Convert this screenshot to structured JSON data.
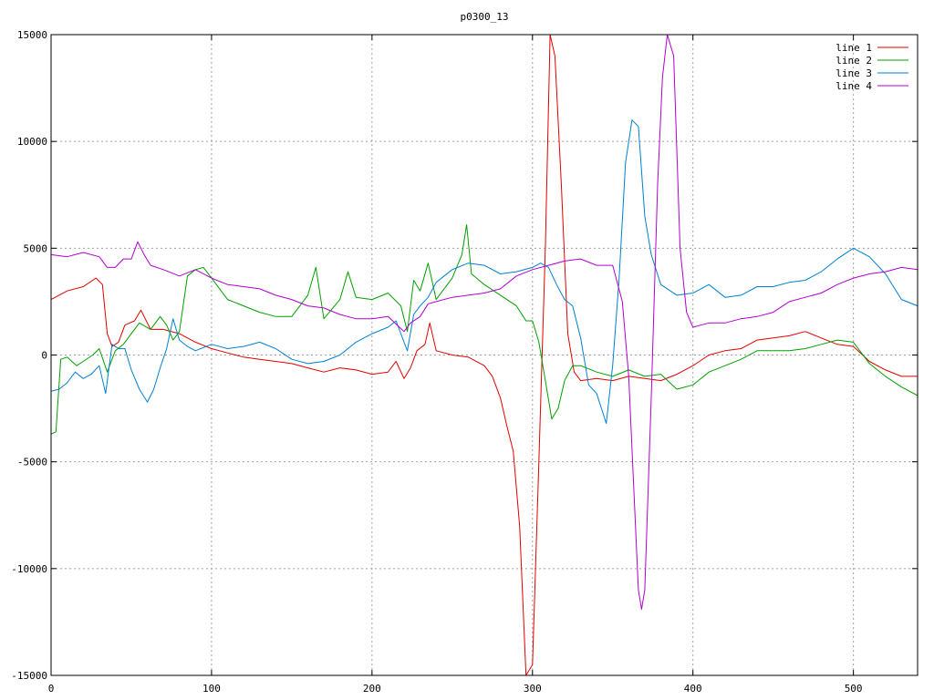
{
  "chart_data": {
    "type": "line",
    "title": "p0300_13",
    "xlabel": "",
    "ylabel": "",
    "xlim": [
      0,
      540
    ],
    "ylim": [
      -15000,
      15000
    ],
    "grid": true,
    "legend_position": "top-right",
    "x_ticks": [
      0,
      100,
      200,
      300,
      400,
      500
    ],
    "y_ticks": [
      -15000,
      -10000,
      -5000,
      0,
      5000,
      10000,
      15000
    ],
    "x_tick_labels": [
      "0",
      "100",
      "200",
      "300",
      "400",
      "500"
    ],
    "y_tick_labels": [
      "-15000",
      "-10000",
      "-5000",
      "0",
      "5000",
      "10000",
      "15000"
    ],
    "series": [
      {
        "name": "line 1",
        "color": "#e00000",
        "points": [
          [
            0,
            2600
          ],
          [
            10,
            3000
          ],
          [
            20,
            3200
          ],
          [
            28,
            3600
          ],
          [
            32,
            3300
          ],
          [
            35,
            1000
          ],
          [
            38,
            400
          ],
          [
            42,
            600
          ],
          [
            46,
            1400
          ],
          [
            52,
            1600
          ],
          [
            56,
            2100
          ],
          [
            62,
            1200
          ],
          [
            70,
            1200
          ],
          [
            80,
            1000
          ],
          [
            90,
            600
          ],
          [
            100,
            300
          ],
          [
            110,
            100
          ],
          [
            120,
            -100
          ],
          [
            130,
            -200
          ],
          [
            140,
            -300
          ],
          [
            150,
            -400
          ],
          [
            160,
            -600
          ],
          [
            170,
            -800
          ],
          [
            180,
            -600
          ],
          [
            190,
            -700
          ],
          [
            200,
            -900
          ],
          [
            210,
            -800
          ],
          [
            215,
            -300
          ],
          [
            220,
            -1100
          ],
          [
            224,
            -600
          ],
          [
            228,
            200
          ],
          [
            233,
            500
          ],
          [
            236,
            1500
          ],
          [
            240,
            200
          ],
          [
            250,
            0
          ],
          [
            260,
            -100
          ],
          [
            270,
            -500
          ],
          [
            275,
            -1000
          ],
          [
            280,
            -2000
          ],
          [
            284,
            -3300
          ],
          [
            288,
            -4500
          ],
          [
            292,
            -8000
          ],
          [
            296,
            -15000
          ],
          [
            300,
            -14500
          ],
          [
            304,
            -5000
          ],
          [
            308,
            5000
          ],
          [
            311,
            15000
          ],
          [
            314,
            14000
          ],
          [
            318,
            8000
          ],
          [
            322,
            1000
          ],
          [
            326,
            -800
          ],
          [
            330,
            -1200
          ],
          [
            340,
            -1100
          ],
          [
            350,
            -1200
          ],
          [
            360,
            -1000
          ],
          [
            370,
            -1100
          ],
          [
            380,
            -1200
          ],
          [
            390,
            -900
          ],
          [
            400,
            -500
          ],
          [
            410,
            0
          ],
          [
            420,
            200
          ],
          [
            430,
            300
          ],
          [
            440,
            700
          ],
          [
            450,
            800
          ],
          [
            460,
            900
          ],
          [
            470,
            1100
          ],
          [
            480,
            800
          ],
          [
            490,
            500
          ],
          [
            500,
            400
          ],
          [
            510,
            -300
          ],
          [
            520,
            -700
          ],
          [
            530,
            -1000
          ],
          [
            540,
            -1000
          ]
        ]
      },
      {
        "name": "line 2",
        "color": "#00a000",
        "points": [
          [
            0,
            -3700
          ],
          [
            3,
            -3600
          ],
          [
            6,
            -200
          ],
          [
            10,
            -100
          ],
          [
            16,
            -500
          ],
          [
            20,
            -300
          ],
          [
            26,
            0
          ],
          [
            30,
            300
          ],
          [
            35,
            -800
          ],
          [
            40,
            200
          ],
          [
            45,
            500
          ],
          [
            50,
            1000
          ],
          [
            55,
            1500
          ],
          [
            62,
            1200
          ],
          [
            68,
            1800
          ],
          [
            72,
            1400
          ],
          [
            76,
            700
          ],
          [
            80,
            1100
          ],
          [
            85,
            3700
          ],
          [
            90,
            4000
          ],
          [
            95,
            4100
          ],
          [
            100,
            3600
          ],
          [
            110,
            2600
          ],
          [
            120,
            2300
          ],
          [
            130,
            2000
          ],
          [
            140,
            1800
          ],
          [
            150,
            1800
          ],
          [
            160,
            2800
          ],
          [
            165,
            4100
          ],
          [
            170,
            1700
          ],
          [
            180,
            2600
          ],
          [
            185,
            3900
          ],
          [
            190,
            2700
          ],
          [
            200,
            2600
          ],
          [
            210,
            2900
          ],
          [
            218,
            2300
          ],
          [
            222,
            1100
          ],
          [
            226,
            3500
          ],
          [
            230,
            3000
          ],
          [
            235,
            4300
          ],
          [
            240,
            2600
          ],
          [
            250,
            3600
          ],
          [
            256,
            4700
          ],
          [
            259,
            6100
          ],
          [
            262,
            3800
          ],
          [
            270,
            3300
          ],
          [
            280,
            2800
          ],
          [
            290,
            2300
          ],
          [
            296,
            1600
          ],
          [
            300,
            1600
          ],
          [
            304,
            600
          ],
          [
            308,
            -1200
          ],
          [
            312,
            -3000
          ],
          [
            316,
            -2500
          ],
          [
            320,
            -1200
          ],
          [
            325,
            -500
          ],
          [
            330,
            -500
          ],
          [
            340,
            -800
          ],
          [
            350,
            -1000
          ],
          [
            360,
            -700
          ],
          [
            370,
            -1000
          ],
          [
            380,
            -900
          ],
          [
            390,
            -1600
          ],
          [
            400,
            -1400
          ],
          [
            410,
            -800
          ],
          [
            420,
            -500
          ],
          [
            430,
            -200
          ],
          [
            440,
            200
          ],
          [
            450,
            200
          ],
          [
            460,
            200
          ],
          [
            470,
            300
          ],
          [
            480,
            500
          ],
          [
            490,
            700
          ],
          [
            500,
            600
          ],
          [
            510,
            -400
          ],
          [
            520,
            -1000
          ],
          [
            530,
            -1500
          ],
          [
            540,
            -1900
          ]
        ]
      },
      {
        "name": "line 3",
        "color": "#0080d0",
        "points": [
          [
            0,
            -1700
          ],
          [
            5,
            -1600
          ],
          [
            10,
            -1300
          ],
          [
            15,
            -800
          ],
          [
            20,
            -1100
          ],
          [
            25,
            -900
          ],
          [
            30,
            -500
          ],
          [
            34,
            -1800
          ],
          [
            38,
            500
          ],
          [
            42,
            300
          ],
          [
            46,
            300
          ],
          [
            50,
            -700
          ],
          [
            55,
            -1600
          ],
          [
            60,
            -2200
          ],
          [
            64,
            -1600
          ],
          [
            68,
            -600
          ],
          [
            72,
            300
          ],
          [
            76,
            1700
          ],
          [
            80,
            700
          ],
          [
            85,
            400
          ],
          [
            90,
            200
          ],
          [
            100,
            500
          ],
          [
            110,
            300
          ],
          [
            120,
            400
          ],
          [
            130,
            600
          ],
          [
            140,
            300
          ],
          [
            150,
            -200
          ],
          [
            160,
            -400
          ],
          [
            170,
            -300
          ],
          [
            180,
            0
          ],
          [
            190,
            600
          ],
          [
            200,
            1000
          ],
          [
            210,
            1300
          ],
          [
            215,
            1600
          ],
          [
            220,
            600
          ],
          [
            222,
            200
          ],
          [
            226,
            1900
          ],
          [
            230,
            2300
          ],
          [
            235,
            2700
          ],
          [
            240,
            3400
          ],
          [
            250,
            4000
          ],
          [
            260,
            4300
          ],
          [
            270,
            4200
          ],
          [
            280,
            3800
          ],
          [
            290,
            3900
          ],
          [
            300,
            4100
          ],
          [
            305,
            4300
          ],
          [
            310,
            4100
          ],
          [
            315,
            3300
          ],
          [
            320,
            2600
          ],
          [
            325,
            2300
          ],
          [
            330,
            800
          ],
          [
            335,
            -1400
          ],
          [
            340,
            -1800
          ],
          [
            346,
            -3200
          ],
          [
            350,
            -500
          ],
          [
            354,
            3600
          ],
          [
            358,
            9000
          ],
          [
            362,
            11000
          ],
          [
            366,
            10700
          ],
          [
            370,
            6500
          ],
          [
            374,
            4700
          ],
          [
            380,
            3300
          ],
          [
            390,
            2800
          ],
          [
            400,
            2900
          ],
          [
            410,
            3300
          ],
          [
            420,
            2700
          ],
          [
            430,
            2800
          ],
          [
            440,
            3200
          ],
          [
            450,
            3200
          ],
          [
            460,
            3400
          ],
          [
            470,
            3500
          ],
          [
            480,
            3900
          ],
          [
            490,
            4500
          ],
          [
            500,
            5000
          ],
          [
            510,
            4600
          ],
          [
            520,
            3800
          ],
          [
            530,
            2600
          ],
          [
            540,
            2300
          ]
        ]
      },
      {
        "name": "line 4",
        "color": "#b000d0",
        "points": [
          [
            0,
            4700
          ],
          [
            10,
            4600
          ],
          [
            20,
            4800
          ],
          [
            30,
            4600
          ],
          [
            35,
            4100
          ],
          [
            40,
            4100
          ],
          [
            45,
            4500
          ],
          [
            50,
            4500
          ],
          [
            54,
            5300
          ],
          [
            58,
            4700
          ],
          [
            62,
            4200
          ],
          [
            70,
            4000
          ],
          [
            80,
            3700
          ],
          [
            90,
            4000
          ],
          [
            100,
            3600
          ],
          [
            110,
            3300
          ],
          [
            120,
            3200
          ],
          [
            130,
            3100
          ],
          [
            140,
            2800
          ],
          [
            150,
            2600
          ],
          [
            160,
            2300
          ],
          [
            170,
            2200
          ],
          [
            180,
            1900
          ],
          [
            190,
            1700
          ],
          [
            200,
            1700
          ],
          [
            210,
            1800
          ],
          [
            220,
            1100
          ],
          [
            224,
            1500
          ],
          [
            230,
            1800
          ],
          [
            235,
            2400
          ],
          [
            240,
            2500
          ],
          [
            250,
            2700
          ],
          [
            260,
            2800
          ],
          [
            270,
            2900
          ],
          [
            280,
            3100
          ],
          [
            290,
            3700
          ],
          [
            300,
            4000
          ],
          [
            310,
            4200
          ],
          [
            320,
            4400
          ],
          [
            330,
            4500
          ],
          [
            340,
            4200
          ],
          [
            350,
            4200
          ],
          [
            356,
            2500
          ],
          [
            360,
            -1000
          ],
          [
            363,
            -6000
          ],
          [
            366,
            -11000
          ],
          [
            368,
            -11900
          ],
          [
            370,
            -11000
          ],
          [
            374,
            -2000
          ],
          [
            378,
            8000
          ],
          [
            381,
            13000
          ],
          [
            384,
            15000
          ],
          [
            388,
            14000
          ],
          [
            392,
            5000
          ],
          [
            396,
            2000
          ],
          [
            400,
            1300
          ],
          [
            410,
            1500
          ],
          [
            420,
            1500
          ],
          [
            430,
            1700
          ],
          [
            440,
            1800
          ],
          [
            450,
            2000
          ],
          [
            460,
            2500
          ],
          [
            470,
            2700
          ],
          [
            480,
            2900
          ],
          [
            490,
            3300
          ],
          [
            500,
            3600
          ],
          [
            510,
            3800
          ],
          [
            520,
            3900
          ],
          [
            530,
            4100
          ],
          [
            540,
            4000
          ]
        ]
      }
    ]
  }
}
